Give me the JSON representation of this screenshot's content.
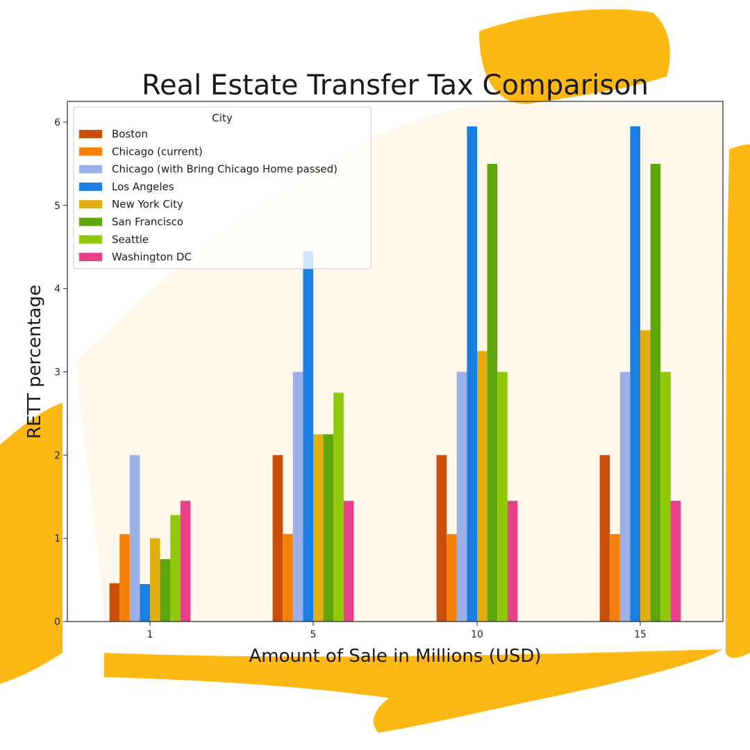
{
  "colors": {
    "paint_stroke": "#FDB813",
    "paint_wash": "#FEF6E6",
    "page_background": "#FFFFFF"
  },
  "chart_data": {
    "type": "bar",
    "title": "Real Estate Transfer Tax Comparison",
    "xlabel": "Amount of Sale in Millions (USD)",
    "ylabel": "RETT percentage",
    "categories": [
      "1",
      "5",
      "10",
      "15"
    ],
    "ylim": [
      0,
      6.25
    ],
    "yticks": [
      0,
      1,
      2,
      3,
      4,
      5,
      6
    ],
    "grid": false,
    "legend": {
      "title": "City",
      "position": "top-left"
    },
    "series": [
      {
        "name": "Boston",
        "color": "#C8500A",
        "values": [
          0.46,
          2.0,
          2.0,
          2.0
        ]
      },
      {
        "name": "Chicago (current)",
        "color": "#F58207",
        "values": [
          1.05,
          1.05,
          1.05,
          1.05
        ]
      },
      {
        "name": "Chicago (with Bring Chicago Home passed)",
        "color": "#9BB0E8",
        "values": [
          2.0,
          3.0,
          3.0,
          3.0
        ]
      },
      {
        "name": "Los Angeles",
        "color": "#1A7FE0",
        "values": [
          0.45,
          4.45,
          5.95,
          5.95
        ]
      },
      {
        "name": "New York City",
        "color": "#E1AE10",
        "values": [
          1.0,
          2.25,
          3.25,
          3.5
        ]
      },
      {
        "name": "San Francisco",
        "color": "#5EA50E",
        "values": [
          0.75,
          2.25,
          5.5,
          5.5
        ]
      },
      {
        "name": "Seattle",
        "color": "#8FC90A",
        "values": [
          1.28,
          2.75,
          3.0,
          3.0
        ]
      },
      {
        "name": "Washington DC",
        "color": "#E8408A",
        "values": [
          1.45,
          1.45,
          1.45,
          1.45
        ]
      }
    ]
  }
}
